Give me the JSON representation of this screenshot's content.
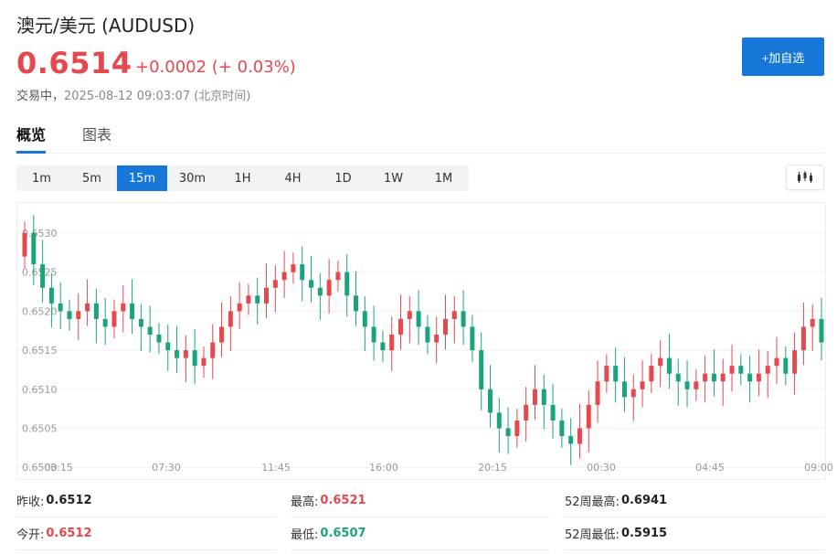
{
  "header": {
    "title": "澳元/美元  (AUDUSD)",
    "price": "0.6514",
    "change": "+0.0002 (+ 0.03%)",
    "status": "交易中，",
    "timestamp": "2025-08-12 09:03:07 (北京时间)",
    "add_button": "+加自选"
  },
  "tabs": [
    {
      "label": "概览",
      "active": true
    },
    {
      "label": "图表",
      "active": false
    }
  ],
  "periods": [
    "1m",
    "5m",
    "15m",
    "30m",
    "1H",
    "4H",
    "1D",
    "1W",
    "1M"
  ],
  "active_period": "15m",
  "colors": {
    "up": "#e5484d",
    "down": "#1ba37d",
    "accent": "#1677d8"
  },
  "chart_data": {
    "type": "candlestick",
    "y_ticks": [
      "0.6530",
      "0.6525",
      "0.6520",
      "0.6515",
      "0.6510",
      "0.6505",
      "0.6500"
    ],
    "x_ticks": [
      "03:15",
      "07:30",
      "11:45",
      "16:00",
      "20:15",
      "00:30",
      "04:45",
      "09:00"
    ],
    "ylim": [
      0.65,
      0.6532
    ],
    "grid": true
  },
  "stats": [
    {
      "label": "昨收:",
      "value": "0.6512",
      "color": "normal"
    },
    {
      "label": "最高:",
      "value": "0.6521",
      "color": "red"
    },
    {
      "label": "52周最高:",
      "value": "0.6941",
      "color": "normal"
    },
    {
      "label": "今开:",
      "value": "0.6512",
      "color": "red"
    },
    {
      "label": "最低:",
      "value": "0.6507",
      "color": "green"
    },
    {
      "label": "52周最低:",
      "value": "0.5915",
      "color": "normal"
    }
  ]
}
